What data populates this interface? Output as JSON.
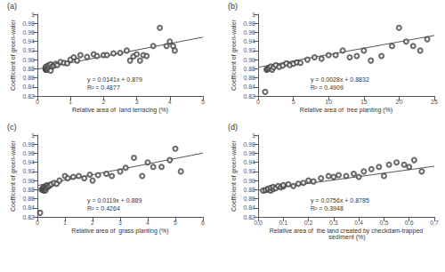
{
  "chart_data": [
    {
      "type": "scatter",
      "title": "(a)",
      "xlabel": "Relative area of  land terracing (%)",
      "ylabel": "Coefficient of green-water",
      "xlim": [
        0,
        5
      ],
      "xticks": [
        0,
        1,
        2,
        3,
        4,
        5
      ],
      "ylim": [
        0.82,
        1.0
      ],
      "yticks": [
        0.82,
        0.84,
        0.86,
        0.88,
        {
          "value": 0.9,
          "label": "0.90"
        },
        0.92,
        0.94,
        0.96,
        0.98,
        1
      ],
      "grid": false,
      "annotations": [
        "y = 0.0141x + 0.879\nR² = 0.4877"
      ],
      "series": [
        {
          "type": "scatter",
          "color": "#444444",
          "marker": "emptyCircle",
          "x": [
            0.25,
            0.25,
            0.25,
            0.25,
            0.25,
            0.3,
            0.3,
            0.3,
            0.35,
            0.35,
            0.4,
            0.4,
            0.45,
            0.5,
            0.55,
            0.6,
            0.7,
            0.8,
            0.9,
            1.0,
            1.1,
            1.2,
            1.3,
            1.5,
            1.7,
            1.8,
            2.0,
            2.1,
            2.3,
            2.5,
            2.7,
            2.8,
            2.9,
            3.0,
            3.1,
            3.2,
            3.3,
            3.5,
            3.7,
            3.9,
            4.0,
            4.1,
            4.15
          ],
          "values": [
            0.878,
            0.879,
            0.88,
            0.882,
            0.884,
            0.878,
            0.881,
            0.886,
            0.883,
            0.888,
            0.876,
            0.89,
            0.885,
            0.887,
            0.891,
            0.888,
            0.895,
            0.893,
            0.892,
            0.9,
            0.905,
            0.898,
            0.91,
            0.906,
            0.912,
            0.908,
            0.91,
            0.91,
            0.914,
            0.915,
            0.92,
            0.898,
            0.907,
            0.912,
            0.898,
            0.91,
            0.908,
            0.93,
            0.97,
            0.93,
            0.94,
            0.93,
            0.92
          ]
        },
        {
          "type": "line",
          "color": "#555555",
          "x": [
            0,
            5
          ],
          "values": [
            0.879,
            0.9495
          ]
        }
      ]
    },
    {
      "type": "scatter",
      "title": "(b)",
      "xlabel": "Relative area of  tree planting (%)",
      "ylabel": "Coefficient of green-water",
      "xlim": [
        0,
        25
      ],
      "xticks": [
        0,
        5,
        10,
        15,
        20,
        25
      ],
      "ylim": [
        0.82,
        1.0
      ],
      "yticks": [
        0.82,
        0.84,
        0.86,
        0.88,
        {
          "value": 0.9,
          "label": "0.90"
        },
        0.92,
        0.94,
        0.96,
        0.98,
        1
      ],
      "grid": false,
      "annotations": [
        "y = 0.0028x + 0.8832\nR² = 0.4909"
      ],
      "series": [
        {
          "type": "scatter",
          "color": "#444444",
          "marker": "emptyCircle",
          "x": [
            1.0,
            1.2,
            1.3,
            1.5,
            1.6,
            1.8,
            2.0,
            2.2,
            2.5,
            3.0,
            3.5,
            4.0,
            4.5,
            5.0,
            5.5,
            6.0,
            7.0,
            8.0,
            9.0,
            10.0,
            11.0,
            12.0,
            13.0,
            14.0,
            15.0,
            16.0,
            17.5,
            19.0,
            20.0,
            21.0,
            22.0,
            23.0,
            24.0
          ],
          "values": [
            0.829,
            0.878,
            0.879,
            0.88,
            0.882,
            0.885,
            0.878,
            0.883,
            0.888,
            0.884,
            0.887,
            0.892,
            0.888,
            0.891,
            0.894,
            0.893,
            0.9,
            0.905,
            0.902,
            0.91,
            0.91,
            0.92,
            0.905,
            0.908,
            0.92,
            0.898,
            0.908,
            0.93,
            0.97,
            0.94,
            0.93,
            0.92,
            0.945
          ]
        },
        {
          "type": "line",
          "color": "#555555",
          "x": [
            0,
            25
          ],
          "values": [
            0.8832,
            0.9532
          ]
        }
      ]
    },
    {
      "type": "scatter",
      "title": "(c)",
      "xlabel": "Relative area of  grass planting (%)",
      "ylabel": "Coefficient of green-water",
      "xlim": [
        0,
        6
      ],
      "xticks": [
        0,
        1,
        2,
        3,
        4,
        5,
        6
      ],
      "ylim": [
        0.82,
        1.0
      ],
      "yticks": [
        0.82,
        0.84,
        0.86,
        0.88,
        {
          "value": 0.9,
          "label": "0.90"
        },
        0.92,
        0.94,
        0.96,
        0.98,
        1
      ],
      "grid": false,
      "annotations": [
        "y = 0.0119x + 0.889\nR² = 0.4264"
      ],
      "series": [
        {
          "type": "scatter",
          "color": "#444444",
          "marker": "emptyCircle",
          "x": [
            0.1,
            0.15,
            0.2,
            0.2,
            0.2,
            0.25,
            0.25,
            0.25,
            0.3,
            0.3,
            0.3,
            0.35,
            0.35,
            0.4,
            0.45,
            0.5,
            0.6,
            0.7,
            0.8,
            1.0,
            1.1,
            1.3,
            1.5,
            1.7,
            1.9,
            2.0,
            2.2,
            2.5,
            2.7,
            3.0,
            3.2,
            3.5,
            3.8,
            4.0,
            4.2,
            4.5,
            4.8,
            5.0,
            5.2
          ],
          "values": [
            0.829,
            0.88,
            0.879,
            0.881,
            0.884,
            0.878,
            0.882,
            0.886,
            0.879,
            0.883,
            0.888,
            0.885,
            0.89,
            0.887,
            0.889,
            0.892,
            0.895,
            0.893,
            0.9,
            0.91,
            0.905,
            0.908,
            0.91,
            0.905,
            0.913,
            0.9,
            0.912,
            0.915,
            0.91,
            0.92,
            0.928,
            0.95,
            0.91,
            0.94,
            0.93,
            0.93,
            0.945,
            0.97,
            0.92
          ]
        },
        {
          "type": "line",
          "color": "#555555",
          "x": [
            0,
            6
          ],
          "values": [
            0.889,
            0.9604
          ]
        }
      ]
    },
    {
      "type": "scatter",
      "title": "(d)",
      "xlabel": "Relative area of  the land created by checkdam-trapped\n sediment (%)",
      "ylabel": "Coefficient of green-water",
      "xlim": [
        0.0,
        0.7
      ],
      "xticks": [
        {
          "value": 0,
          "label": "0.0"
        },
        0.1,
        0.2,
        0.3,
        0.4,
        0.5,
        0.6,
        0.7
      ],
      "ylim": [
        0.82,
        1.0
      ],
      "yticks": [
        0.82,
        0.84,
        0.86,
        0.88,
        {
          "value": 0.9,
          "label": "0.90"
        },
        0.92,
        0.94,
        0.96,
        0.98,
        1
      ],
      "grid": false,
      "annotations": [
        "y = 0.0756x + 0.8785\nR² = 0.3948"
      ],
      "series": [
        {
          "type": "scatter",
          "color": "#444444",
          "marker": "emptyCircle",
          "x": [
            0.02,
            0.03,
            0.04,
            0.04,
            0.05,
            0.05,
            0.06,
            0.06,
            0.07,
            0.08,
            0.09,
            0.1,
            0.1,
            0.12,
            0.14,
            0.16,
            0.18,
            0.2,
            0.22,
            0.25,
            0.28,
            0.3,
            0.32,
            0.35,
            0.38,
            0.4,
            0.42,
            0.45,
            0.48,
            0.5,
            0.52,
            0.55,
            0.58,
            0.6,
            0.62,
            0.65
          ],
          "values": [
            0.878,
            0.879,
            0.88,
            0.882,
            0.878,
            0.884,
            0.881,
            0.886,
            0.883,
            0.888,
            0.885,
            0.887,
            0.89,
            0.892,
            0.888,
            0.893,
            0.895,
            0.9,
            0.898,
            0.905,
            0.91,
            0.908,
            0.912,
            0.91,
            0.915,
            0.908,
            0.92,
            0.925,
            0.93,
            0.91,
            0.935,
            0.94,
            0.935,
            0.93,
            0.945,
            0.92
          ]
        },
        {
          "type": "line",
          "color": "#555555",
          "x": [
            0.0,
            0.7
          ],
          "values": [
            0.8785,
            0.93142
          ]
        }
      ]
    }
  ]
}
